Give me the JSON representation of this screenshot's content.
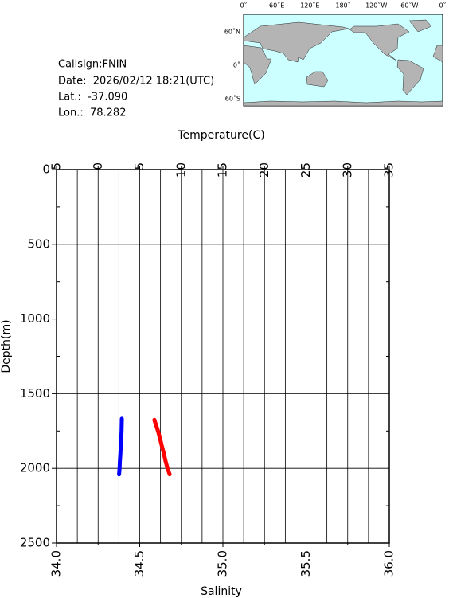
{
  "info": {
    "callsign": "Callsign:FNIN",
    "date": "Date:  2026/02/12 18:21(UTC)",
    "lat": "Lat.:  -37.090",
    "lon": "Lon.:  78.282"
  },
  "map": {
    "lon_labels": [
      "0˚",
      "60˚E",
      "120˚E",
      "180˚",
      "120˚W",
      "60˚W",
      "0˚"
    ],
    "lat_labels": [
      "60˚N",
      "0˚",
      "60˚S"
    ]
  },
  "chart_data": {
    "type": "line",
    "xlabel": "Salinity",
    "x2label": "Temperature(C)",
    "ylabel": "Depth(m)",
    "xlim": [
      34.0,
      36.0
    ],
    "xticks": [
      {
        "value": 34.0,
        "label": "34.0"
      },
      34.5,
      {
        "value": 35.0,
        "label": "35.0"
      },
      35.5,
      {
        "value": 36.0,
        "label": "36.0"
      }
    ],
    "xminorticks": [
      34.25,
      34.75,
      35.25,
      35.75
    ],
    "x2lim": [
      -5,
      35
    ],
    "x2ticks": [
      -5,
      0,
      5,
      10,
      15,
      20,
      25,
      30,
      35
    ],
    "x2minorticks": [
      -2.5,
      2.5,
      7.5,
      12.5,
      17.5,
      22.5,
      27.5,
      32.5
    ],
    "ylim": [
      2500,
      0
    ],
    "yticks": [
      0,
      500,
      1000,
      1500,
      2000,
      2500
    ],
    "yminorticks": [
      250,
      750,
      1250,
      1750,
      2250
    ],
    "grid": true,
    "series": [
      {
        "color": "#0000ff",
        "axis": "x2",
        "x": [
          2.85,
          2.84,
          2.82,
          2.78,
          2.72,
          2.68,
          2.62,
          2.58,
          2.52
        ],
        "y": [
          1668,
          1700,
          1750,
          1800,
          1850,
          1900,
          1950,
          2000,
          2040
        ]
      },
      {
        "color": "#ff0000",
        "axis": "x",
        "x": [
          34.588,
          34.595,
          34.61,
          34.622,
          34.633,
          34.645,
          34.655,
          34.667,
          34.68
        ],
        "y": [
          1675,
          1700,
          1750,
          1800,
          1850,
          1900,
          1950,
          2000,
          2040
        ]
      }
    ]
  }
}
